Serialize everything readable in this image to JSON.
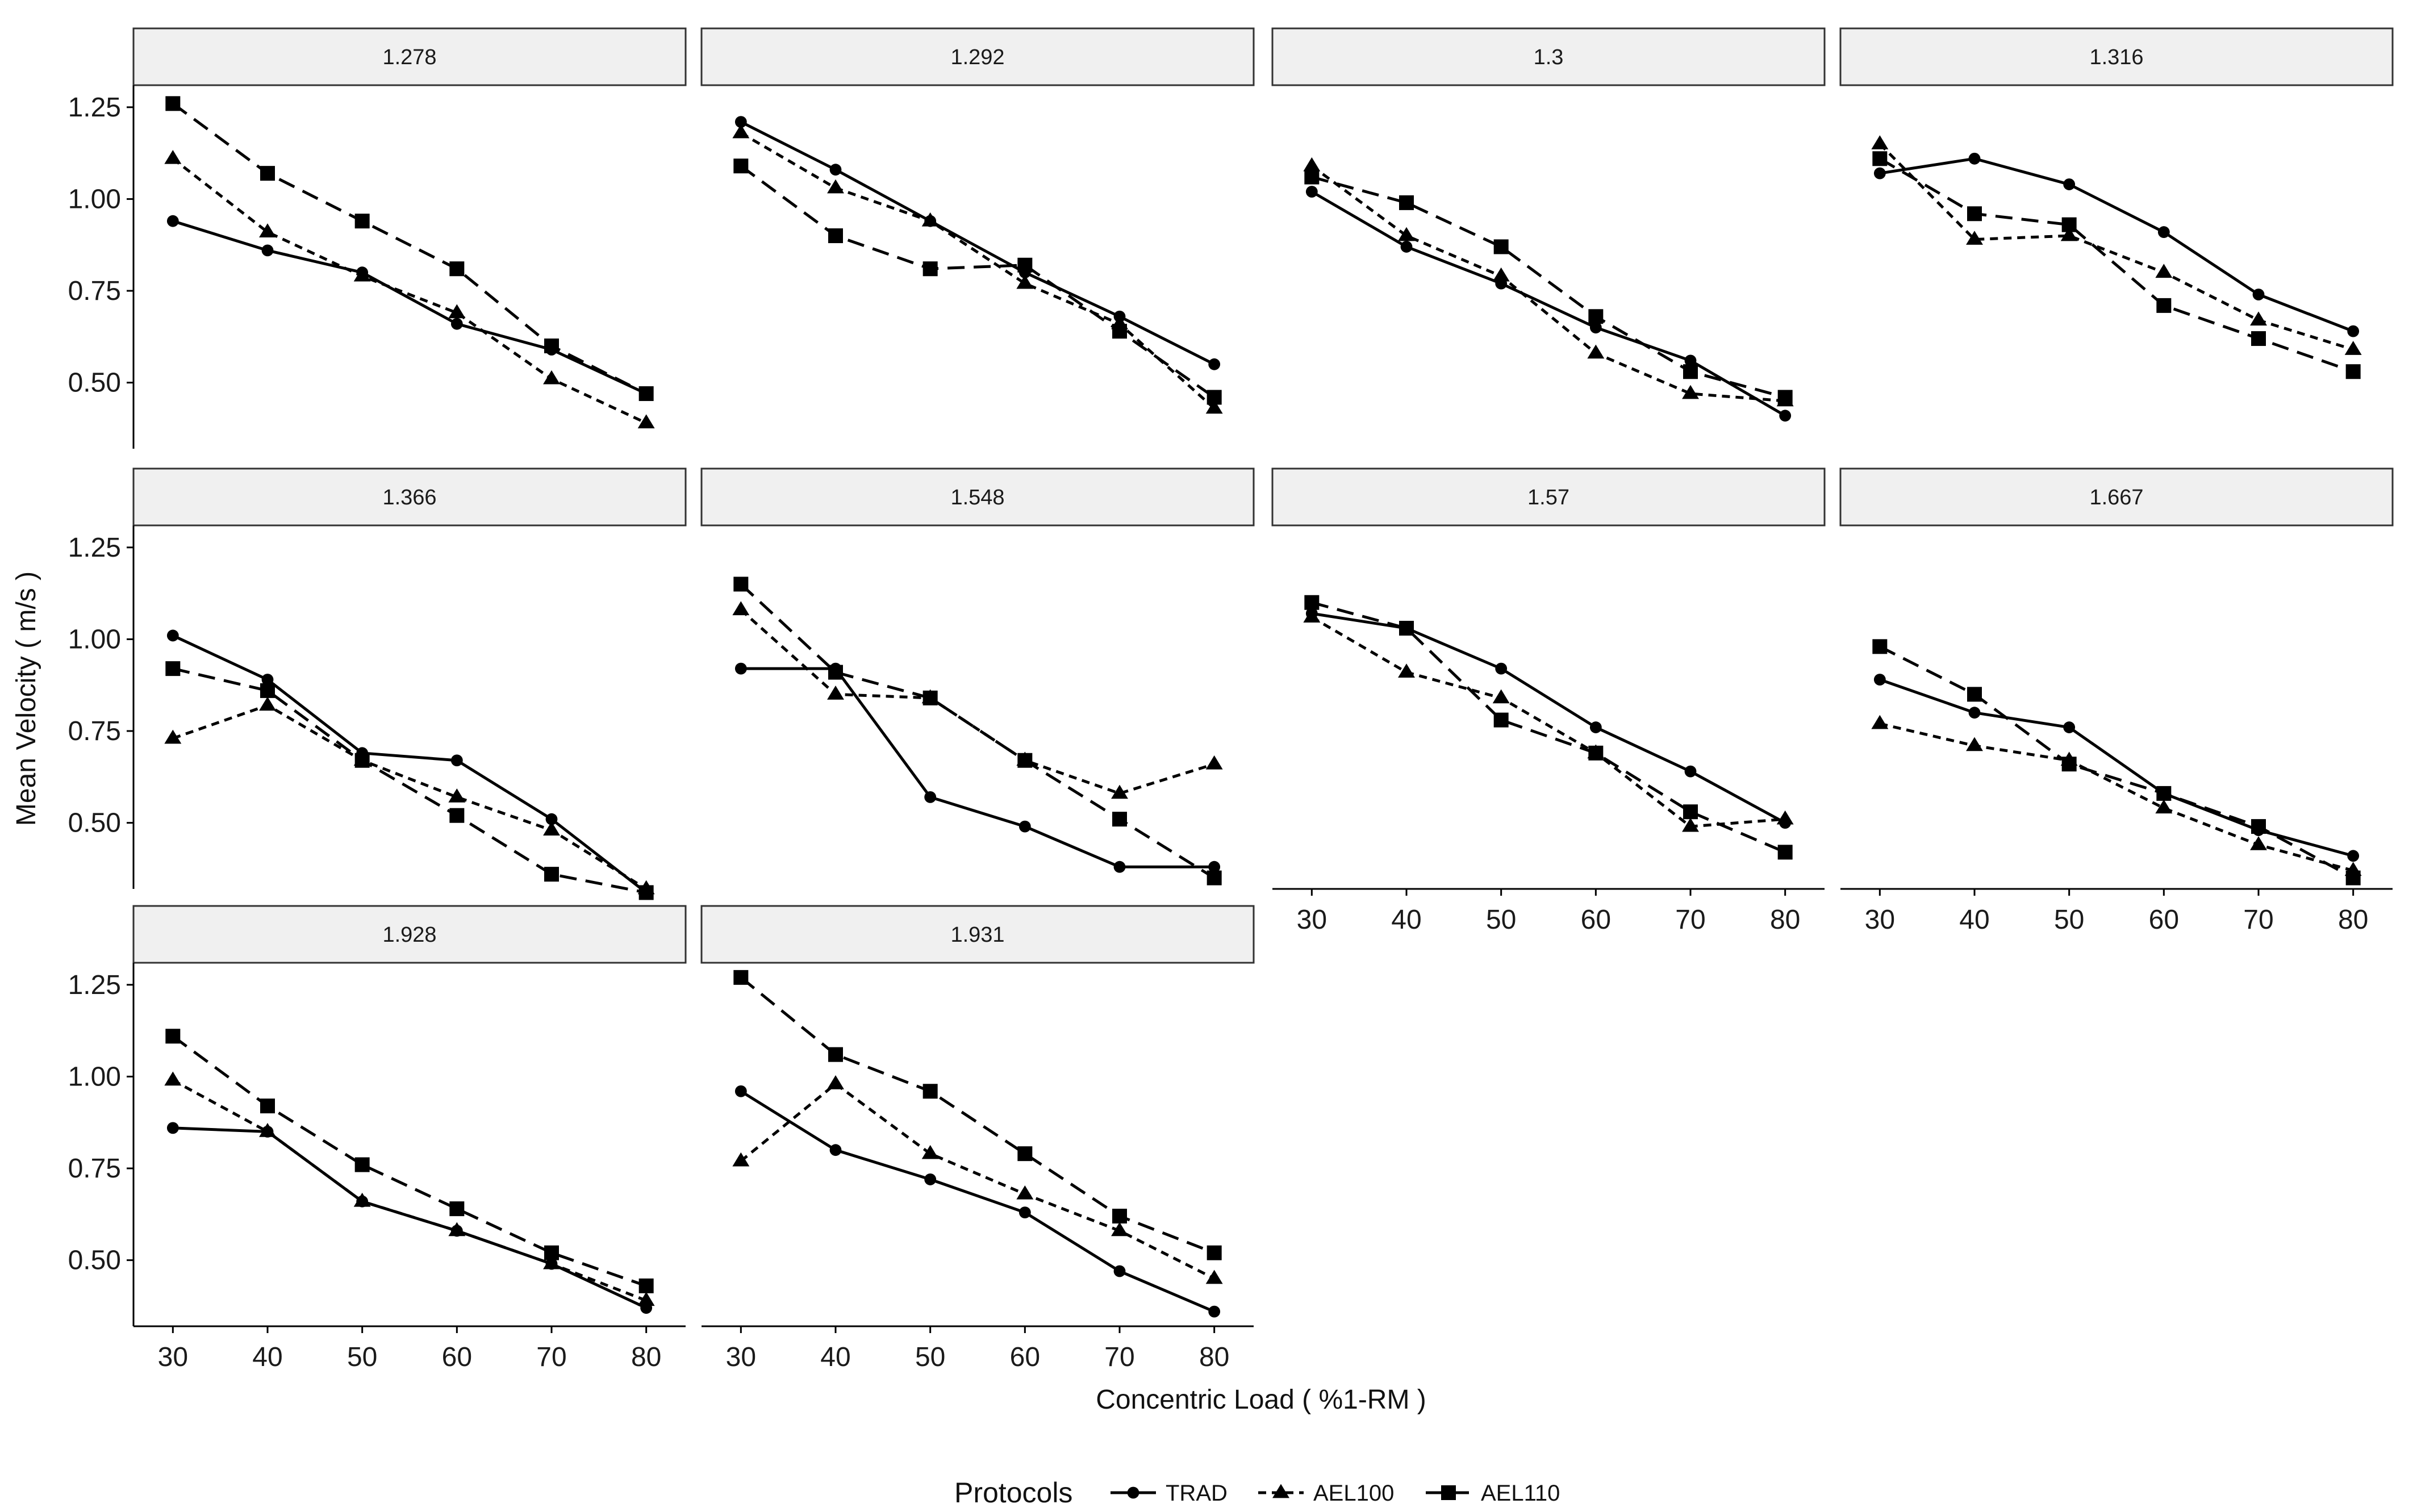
{
  "chart_data": {
    "type": "line",
    "facet_variable": "panel",
    "xlabel": "Concentric Load ( %1-RM )",
    "ylabel": "Mean Velocity ( m/s )",
    "x": [
      30,
      40,
      50,
      60,
      70,
      80
    ],
    "x_tick_labels": [
      "30",
      "40",
      "50",
      "60",
      "70",
      "80"
    ],
    "y_ticks": [
      0.5,
      0.75,
      1.0,
      1.25
    ],
    "y_tick_labels": [
      "0.50",
      "0.75",
      "1.00",
      "1.25"
    ],
    "ylim": [
      0.32,
      1.31
    ],
    "xlim": [
      28,
      82
    ],
    "grid": false,
    "legend": {
      "title": "Protocols",
      "position": "bottom",
      "entries": [
        {
          "name": "TRAD",
          "line": "solid",
          "marker": "circle"
        },
        {
          "name": "AEL100",
          "line": "dotted",
          "marker": "triangle"
        },
        {
          "name": "AEL110",
          "line": "dashed",
          "marker": "square"
        }
      ]
    },
    "panels": [
      {
        "label": "1.278",
        "series": {
          "TRAD": [
            0.94,
            0.86,
            0.8,
            0.66,
            0.59,
            0.47
          ],
          "AEL100": [
            1.11,
            0.91,
            0.79,
            0.69,
            0.51,
            0.39
          ],
          "AEL110": [
            1.26,
            1.07,
            0.94,
            0.81,
            0.6,
            0.47
          ]
        }
      },
      {
        "label": "1.292",
        "series": {
          "TRAD": [
            1.21,
            1.08,
            0.94,
            0.8,
            0.68,
            0.55
          ],
          "AEL100": [
            1.18,
            1.03,
            0.94,
            0.77,
            0.66,
            0.43
          ],
          "AEL110": [
            1.09,
            0.9,
            0.81,
            0.82,
            0.64,
            0.46
          ]
        }
      },
      {
        "label": "1.3",
        "series": {
          "TRAD": [
            1.02,
            0.87,
            0.77,
            0.65,
            0.56,
            0.41
          ],
          "AEL100": [
            1.09,
            0.9,
            0.79,
            0.58,
            0.47,
            0.45
          ],
          "AEL110": [
            1.06,
            0.99,
            0.87,
            0.68,
            0.53,
            0.46
          ]
        }
      },
      {
        "label": "1.316",
        "series": {
          "TRAD": [
            1.07,
            1.11,
            1.04,
            0.91,
            0.74,
            0.64
          ],
          "AEL100": [
            1.15,
            0.89,
            0.9,
            0.8,
            0.67,
            0.59
          ],
          "AEL110": [
            1.11,
            0.96,
            0.93,
            0.71,
            0.62,
            0.53
          ]
        }
      },
      {
        "label": "1.366",
        "series": {
          "TRAD": [
            1.01,
            0.89,
            0.69,
            0.67,
            0.51,
            0.31
          ],
          "AEL100": [
            0.73,
            0.82,
            0.67,
            0.57,
            0.48,
            0.32
          ],
          "AEL110": [
            0.92,
            0.86,
            0.67,
            0.52,
            0.36,
            0.31
          ]
        }
      },
      {
        "label": "1.548",
        "series": {
          "TRAD": [
            0.92,
            0.92,
            0.57,
            0.49,
            0.38,
            0.38
          ],
          "AEL100": [
            1.08,
            0.85,
            0.84,
            0.67,
            0.58,
            0.66
          ],
          "AEL110": [
            1.15,
            0.91,
            0.84,
            0.67,
            0.51,
            0.35
          ]
        }
      },
      {
        "label": "1.57",
        "series": {
          "TRAD": [
            1.07,
            1.03,
            0.92,
            0.76,
            0.64,
            0.5
          ],
          "AEL100": [
            1.06,
            0.91,
            0.84,
            0.69,
            0.49,
            0.51
          ],
          "AEL110": [
            1.1,
            1.03,
            0.78,
            0.69,
            0.53,
            0.42
          ]
        }
      },
      {
        "label": "1.667",
        "series": {
          "TRAD": [
            0.89,
            0.8,
            0.76,
            0.58,
            0.48,
            0.41
          ],
          "AEL100": [
            0.77,
            0.71,
            0.67,
            0.54,
            0.44,
            0.37
          ],
          "AEL110": [
            0.98,
            0.85,
            0.66,
            0.58,
            0.49,
            0.35
          ]
        }
      },
      {
        "label": "1.928",
        "series": {
          "TRAD": [
            0.86,
            0.85,
            0.66,
            0.58,
            0.49,
            0.37
          ],
          "AEL100": [
            0.99,
            0.85,
            0.66,
            0.58,
            0.49,
            0.39
          ],
          "AEL110": [
            1.11,
            0.92,
            0.76,
            0.64,
            0.52,
            0.43
          ]
        }
      },
      {
        "label": "1.931",
        "series": {
          "TRAD": [
            0.96,
            0.8,
            0.72,
            0.63,
            0.47,
            0.36
          ],
          "AEL100": [
            0.77,
            0.98,
            0.79,
            0.68,
            0.58,
            0.45
          ],
          "AEL110": [
            1.27,
            1.06,
            0.96,
            0.79,
            0.62,
            0.52
          ]
        }
      }
    ]
  }
}
